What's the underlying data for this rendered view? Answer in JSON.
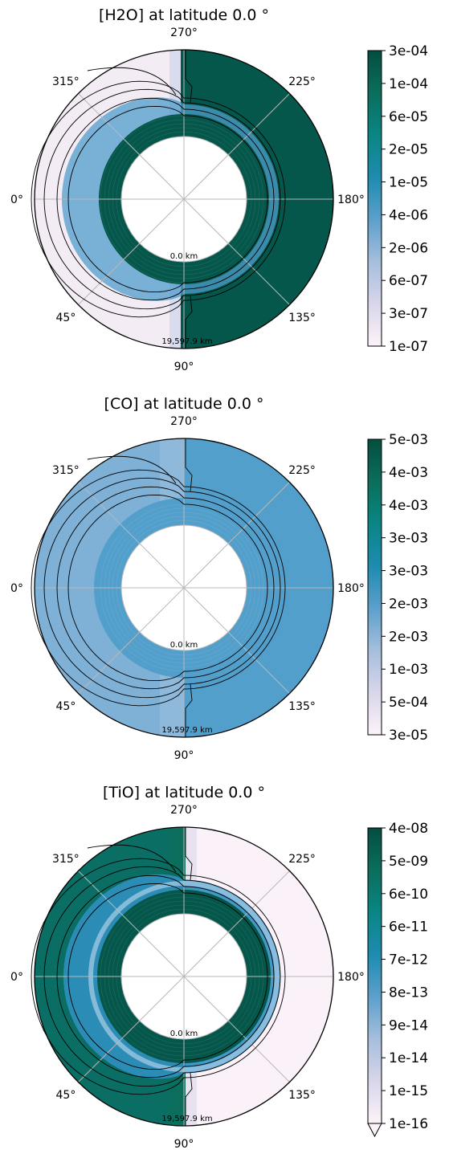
{
  "chart_data": [
    {
      "type": "heatmap",
      "projection": "polar",
      "title": "[H2O] at latitude 0.0 °",
      "species": "H2O",
      "latitude": 0.0,
      "angle_labels": [
        "0°",
        "45°",
        "90°",
        "135°",
        "180°",
        "225°",
        "270°",
        "315°"
      ],
      "radius_labels": [
        "0.0 km",
        "19,597.9 km"
      ],
      "colorbar": {
        "ticks": [
          "1e-07",
          "3e-07",
          "6e-07",
          "2e-06",
          "4e-06",
          "1e-05",
          "2e-05",
          "6e-05",
          "1e-04",
          "3e-04"
        ],
        "colormap": [
          "#fdf2f8",
          "#d8d6ea",
          "#a6bedc",
          "#5d9fcb",
          "#1e8bb0",
          "#098684",
          "#0b6e5c",
          "#044e3f"
        ],
        "extend": "none"
      },
      "nightside_value": "1e-07",
      "dayside_value": "3e-04",
      "inner_value": "3e-04"
    },
    {
      "type": "heatmap",
      "projection": "polar",
      "title": "[CO] at latitude 0.0 °",
      "species": "CO",
      "latitude": 0.0,
      "angle_labels": [
        "0°",
        "45°",
        "90°",
        "135°",
        "180°",
        "225°",
        "270°",
        "315°"
      ],
      "radius_labels": [
        "0.0 km",
        "19,597.9 km"
      ],
      "colorbar": {
        "ticks": [
          "3e-05",
          "5e-04",
          "1e-03",
          "2e-03",
          "2e-03",
          "3e-03",
          "3e-03",
          "4e-03",
          "4e-03",
          "5e-03"
        ],
        "colormap": [
          "#fdf2f8",
          "#d8d6ea",
          "#a6bedc",
          "#5d9fcb",
          "#1e8bb0",
          "#098684",
          "#0b6e5c",
          "#044e3f"
        ],
        "extend": "none"
      },
      "nightside_value": "1e-03",
      "dayside_value": "1e-03",
      "inner_value": "1e-03"
    },
    {
      "type": "heatmap",
      "projection": "polar",
      "title": "[TiO] at latitude 0.0 °",
      "species": "TiO",
      "latitude": 0.0,
      "angle_labels": [
        "0°",
        "45°",
        "90°",
        "135°",
        "180°",
        "225°",
        "270°",
        "315°"
      ],
      "radius_labels": [
        "0.0 km",
        "19,597.9 km"
      ],
      "colorbar": {
        "ticks": [
          "1e-16",
          "1e-15",
          "1e-14",
          "9e-14",
          "8e-13",
          "7e-12",
          "6e-11",
          "6e-10",
          "5e-09",
          "4e-08"
        ],
        "colormap": [
          "#fdf2f8",
          "#d8d6ea",
          "#a6bedc",
          "#5d9fcb",
          "#1e8bb0",
          "#098684",
          "#0b6e5c",
          "#044e3f"
        ],
        "extend": "min"
      },
      "nightside_value": "5e-09",
      "dayside_value": "1e-16",
      "inner_value": "4e-08"
    }
  ],
  "colors": {
    "grid": "#b8b8b8",
    "outline": "#000000",
    "h2o_night": "#f3ecf4",
    "h2o_day": "#04574a",
    "h2o_terminator": "#4f9ccc",
    "co_night": "#7fb1d6",
    "co_day": "#539fcb",
    "co_inner": "#539fcb",
    "tio_night": "#0a6e64",
    "tio_day": "#fbf1f8",
    "tio_inner": "#04574a",
    "inner_dark": "#04574a"
  }
}
